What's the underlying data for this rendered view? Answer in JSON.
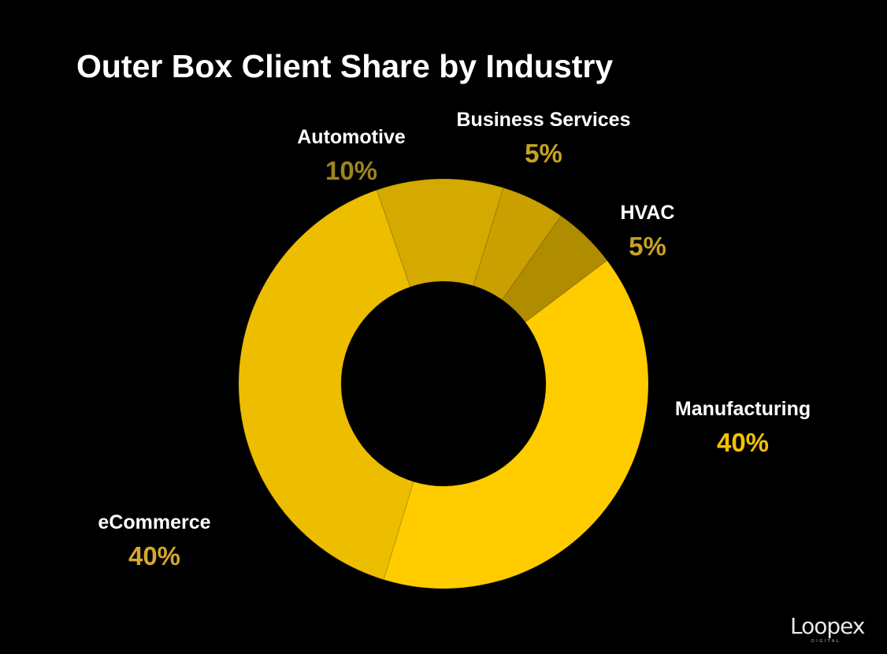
{
  "chart_data": {
    "type": "pie",
    "title": "Outer Box Client Share by Industry",
    "donut": true,
    "categories": [
      "Manufacturing",
      "eCommerce",
      "Automotive",
      "Business Services",
      "HVAC"
    ],
    "values": [
      40,
      40,
      10,
      5,
      5
    ],
    "value_labels": [
      "40%",
      "40%",
      "10%",
      "5%",
      "5%"
    ],
    "colors": [
      "#FFCC00",
      "#EDBD00",
      "#D4A900",
      "#C9A000",
      "#B08C00"
    ],
    "label_colors": [
      "#F2C200",
      "#D4A82A",
      "#9E8420",
      "#C9A31F",
      "#C9A31F"
    ],
    "legend": "none"
  },
  "watermark": {
    "text": "Loopex",
    "subtext": "DIGITAL"
  },
  "colors": {
    "background": "#000000",
    "title": "#FFFFFF",
    "category_label": "#FFFFFF"
  }
}
